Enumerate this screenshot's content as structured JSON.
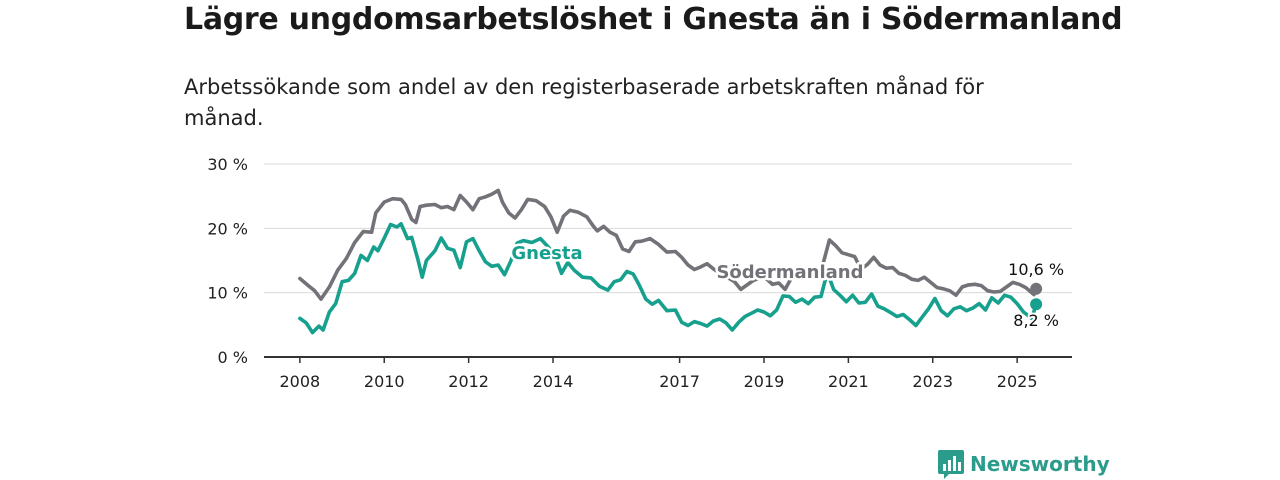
{
  "title": "Lägre ungdomsarbetslöshet i Gnesta än i Södermanland",
  "subtitle": "Arbetssökande som andel av den registerbaserade arbetskraften månad för månad.",
  "brand": {
    "name": "Newsworthy",
    "color": "#2b9b8c",
    "icon": "bar-chart-icon"
  },
  "chart_data": {
    "type": "line",
    "y_ticks": [
      "0 %",
      "10 %",
      "20 %",
      "30 %"
    ],
    "ylim": [
      0,
      30
    ],
    "x_ticks": [
      {
        "label": "2008",
        "value": 2008.0
      },
      {
        "label": "2010",
        "value": 2010.0
      },
      {
        "label": "2012",
        "value": 2012.0
      },
      {
        "label": "2014",
        "value": 2014.0
      },
      {
        "label": "2017",
        "value": 2017.0
      },
      {
        "label": "2019",
        "value": 2019.0
      },
      {
        "label": "2021",
        "value": 2021.0
      },
      {
        "label": "2023",
        "value": 2023.0
      },
      {
        "label": "2025",
        "value": 2025.0
      }
    ],
    "xlim": [
      2007.15,
      2026.3
    ],
    "grid": true,
    "series": [
      {
        "name": "Södermanland",
        "color": "#737278",
        "end_label": "10,6 %",
        "points": [
          [
            2008.0,
            12.2
          ],
          [
            2008.2,
            11.1
          ],
          [
            2008.35,
            10.3
          ],
          [
            2008.5,
            9.0
          ],
          [
            2008.7,
            10.9
          ],
          [
            2008.9,
            13.5
          ],
          [
            2009.1,
            15.3
          ],
          [
            2009.3,
            17.8
          ],
          [
            2009.5,
            19.5
          ],
          [
            2009.7,
            19.4
          ],
          [
            2009.8,
            22.4
          ],
          [
            2010.0,
            24.1
          ],
          [
            2010.2,
            24.6
          ],
          [
            2010.4,
            24.5
          ],
          [
            2010.5,
            23.7
          ],
          [
            2010.65,
            21.4
          ],
          [
            2010.75,
            20.9
          ],
          [
            2010.85,
            23.4
          ],
          [
            2011.0,
            23.6
          ],
          [
            2011.2,
            23.7
          ],
          [
            2011.35,
            23.2
          ],
          [
            2011.5,
            23.4
          ],
          [
            2011.65,
            22.9
          ],
          [
            2011.8,
            25.1
          ],
          [
            2011.95,
            24.1
          ],
          [
            2012.1,
            22.9
          ],
          [
            2012.25,
            24.6
          ],
          [
            2012.4,
            24.9
          ],
          [
            2012.55,
            25.3
          ],
          [
            2012.7,
            25.9
          ],
          [
            2012.8,
            24.1
          ],
          [
            2012.95,
            22.4
          ],
          [
            2013.1,
            21.6
          ],
          [
            2013.25,
            22.9
          ],
          [
            2013.4,
            24.5
          ],
          [
            2013.6,
            24.3
          ],
          [
            2013.8,
            23.4
          ],
          [
            2013.95,
            21.8
          ],
          [
            2014.1,
            19.4
          ],
          [
            2014.25,
            21.9
          ],
          [
            2014.4,
            22.8
          ],
          [
            2014.6,
            22.5
          ],
          [
            2014.8,
            21.8
          ],
          [
            2014.95,
            20.4
          ],
          [
            2015.05,
            19.6
          ],
          [
            2015.2,
            20.3
          ],
          [
            2015.35,
            19.4
          ],
          [
            2015.5,
            18.9
          ],
          [
            2015.65,
            16.8
          ],
          [
            2015.8,
            16.4
          ],
          [
            2015.95,
            17.9
          ],
          [
            2016.1,
            18.0
          ],
          [
            2016.3,
            18.4
          ],
          [
            2016.5,
            17.5
          ],
          [
            2016.7,
            16.3
          ],
          [
            2016.9,
            16.4
          ],
          [
            2017.05,
            15.5
          ],
          [
            2017.2,
            14.3
          ],
          [
            2017.35,
            13.6
          ],
          [
            2017.5,
            14.0
          ],
          [
            2017.65,
            14.5
          ],
          [
            2017.8,
            13.7
          ],
          [
            2018.0,
            12.9
          ],
          [
            2018.15,
            12.3
          ],
          [
            2018.3,
            11.7
          ],
          [
            2018.45,
            10.5
          ],
          [
            2018.6,
            11.2
          ],
          [
            2018.75,
            11.9
          ],
          [
            2018.9,
            12.3
          ],
          [
            2019.05,
            12.2
          ],
          [
            2019.2,
            11.3
          ],
          [
            2019.35,
            11.5
          ],
          [
            2019.5,
            10.5
          ],
          [
            2019.65,
            12.3
          ],
          [
            2019.8,
            12.5
          ],
          [
            2019.95,
            12.8
          ],
          [
            2020.1,
            12.4
          ],
          [
            2020.25,
            12.2
          ],
          [
            2020.4,
            14.5
          ],
          [
            2020.55,
            18.2
          ],
          [
            2020.7,
            17.3
          ],
          [
            2020.85,
            16.2
          ],
          [
            2021.0,
            15.9
          ],
          [
            2021.15,
            15.6
          ],
          [
            2021.3,
            13.6
          ],
          [
            2021.45,
            14.4
          ],
          [
            2021.6,
            15.5
          ],
          [
            2021.75,
            14.3
          ],
          [
            2021.9,
            13.8
          ],
          [
            2022.05,
            13.9
          ],
          [
            2022.2,
            13.0
          ],
          [
            2022.35,
            12.7
          ],
          [
            2022.5,
            12.1
          ],
          [
            2022.65,
            11.9
          ],
          [
            2022.8,
            12.4
          ],
          [
            2022.95,
            11.6
          ],
          [
            2023.1,
            10.8
          ],
          [
            2023.25,
            10.6
          ],
          [
            2023.4,
            10.3
          ],
          [
            2023.55,
            9.6
          ],
          [
            2023.7,
            10.9
          ],
          [
            2023.85,
            11.2
          ],
          [
            2024.0,
            11.3
          ],
          [
            2024.15,
            11.1
          ],
          [
            2024.3,
            10.3
          ],
          [
            2024.45,
            10.1
          ],
          [
            2024.6,
            10.2
          ],
          [
            2024.75,
            10.9
          ],
          [
            2024.9,
            11.6
          ],
          [
            2025.05,
            11.3
          ],
          [
            2025.2,
            10.8
          ],
          [
            2025.4,
            9.7
          ],
          [
            2025.45,
            10.6
          ]
        ]
      },
      {
        "name": "Gnesta",
        "color": "#16a08d",
        "end_label": "8,2 %",
        "points": [
          [
            2008.0,
            6.0
          ],
          [
            2008.15,
            5.3
          ],
          [
            2008.3,
            3.8
          ],
          [
            2008.45,
            4.8
          ],
          [
            2008.55,
            4.2
          ],
          [
            2008.7,
            7.0
          ],
          [
            2008.85,
            8.3
          ],
          [
            2009.0,
            11.7
          ],
          [
            2009.15,
            11.9
          ],
          [
            2009.3,
            13.0
          ],
          [
            2009.45,
            15.8
          ],
          [
            2009.6,
            15.0
          ],
          [
            2009.75,
            17.1
          ],
          [
            2009.85,
            16.5
          ],
          [
            2010.0,
            18.5
          ],
          [
            2010.15,
            20.6
          ],
          [
            2010.3,
            20.2
          ],
          [
            2010.4,
            20.7
          ],
          [
            2010.55,
            18.4
          ],
          [
            2010.65,
            18.6
          ],
          [
            2010.8,
            15.1
          ],
          [
            2010.9,
            12.4
          ],
          [
            2011.0,
            15.0
          ],
          [
            2011.2,
            16.5
          ],
          [
            2011.35,
            18.5
          ],
          [
            2011.5,
            16.9
          ],
          [
            2011.65,
            16.6
          ],
          [
            2011.8,
            13.9
          ],
          [
            2011.95,
            17.9
          ],
          [
            2012.1,
            18.4
          ],
          [
            2012.25,
            16.5
          ],
          [
            2012.4,
            14.8
          ],
          [
            2012.55,
            14.1
          ],
          [
            2012.7,
            14.3
          ],
          [
            2012.85,
            12.8
          ],
          [
            2013.0,
            14.9
          ],
          [
            2013.15,
            17.7
          ],
          [
            2013.3,
            18.1
          ],
          [
            2013.5,
            17.8
          ],
          [
            2013.7,
            18.4
          ],
          [
            2013.9,
            17.0
          ],
          [
            2014.05,
            15.8
          ],
          [
            2014.2,
            13.0
          ],
          [
            2014.35,
            14.7
          ],
          [
            2014.5,
            13.5
          ],
          [
            2014.7,
            12.4
          ],
          [
            2014.9,
            12.3
          ],
          [
            2015.1,
            11.0
          ],
          [
            2015.3,
            10.4
          ],
          [
            2015.45,
            11.7
          ],
          [
            2015.6,
            12.0
          ],
          [
            2015.75,
            13.3
          ],
          [
            2015.9,
            12.9
          ],
          [
            2016.05,
            11.1
          ],
          [
            2016.2,
            9.0
          ],
          [
            2016.35,
            8.2
          ],
          [
            2016.5,
            8.8
          ],
          [
            2016.7,
            7.2
          ],
          [
            2016.9,
            7.3
          ],
          [
            2017.05,
            5.4
          ],
          [
            2017.2,
            4.9
          ],
          [
            2017.35,
            5.5
          ],
          [
            2017.5,
            5.2
          ],
          [
            2017.65,
            4.8
          ],
          [
            2017.8,
            5.6
          ],
          [
            2017.95,
            5.9
          ],
          [
            2018.1,
            5.3
          ],
          [
            2018.25,
            4.2
          ],
          [
            2018.4,
            5.4
          ],
          [
            2018.55,
            6.3
          ],
          [
            2018.7,
            6.8
          ],
          [
            2018.85,
            7.3
          ],
          [
            2019.0,
            7.0
          ],
          [
            2019.15,
            6.4
          ],
          [
            2019.3,
            7.3
          ],
          [
            2019.45,
            9.5
          ],
          [
            2019.6,
            9.4
          ],
          [
            2019.75,
            8.5
          ],
          [
            2019.9,
            9.0
          ],
          [
            2020.05,
            8.3
          ],
          [
            2020.2,
            9.3
          ],
          [
            2020.35,
            9.4
          ],
          [
            2020.5,
            13.2
          ],
          [
            2020.65,
            10.5
          ],
          [
            2020.8,
            9.6
          ],
          [
            2020.95,
            8.6
          ],
          [
            2021.1,
            9.6
          ],
          [
            2021.25,
            8.4
          ],
          [
            2021.4,
            8.5
          ],
          [
            2021.55,
            9.8
          ],
          [
            2021.7,
            7.9
          ],
          [
            2021.85,
            7.5
          ],
          [
            2022.0,
            6.9
          ],
          [
            2022.15,
            6.3
          ],
          [
            2022.3,
            6.6
          ],
          [
            2022.45,
            5.8
          ],
          [
            2022.6,
            4.9
          ],
          [
            2022.75,
            6.2
          ],
          [
            2022.9,
            7.5
          ],
          [
            2023.05,
            9.1
          ],
          [
            2023.2,
            7.2
          ],
          [
            2023.35,
            6.4
          ],
          [
            2023.5,
            7.5
          ],
          [
            2023.65,
            7.8
          ],
          [
            2023.8,
            7.2
          ],
          [
            2023.95,
            7.6
          ],
          [
            2024.1,
            8.3
          ],
          [
            2024.25,
            7.3
          ],
          [
            2024.4,
            9.2
          ],
          [
            2024.55,
            8.4
          ],
          [
            2024.7,
            9.6
          ],
          [
            2024.85,
            9.3
          ],
          [
            2025.0,
            8.3
          ],
          [
            2025.15,
            7.0
          ],
          [
            2025.35,
            6.0
          ],
          [
            2025.45,
            8.2
          ]
        ]
      }
    ]
  }
}
